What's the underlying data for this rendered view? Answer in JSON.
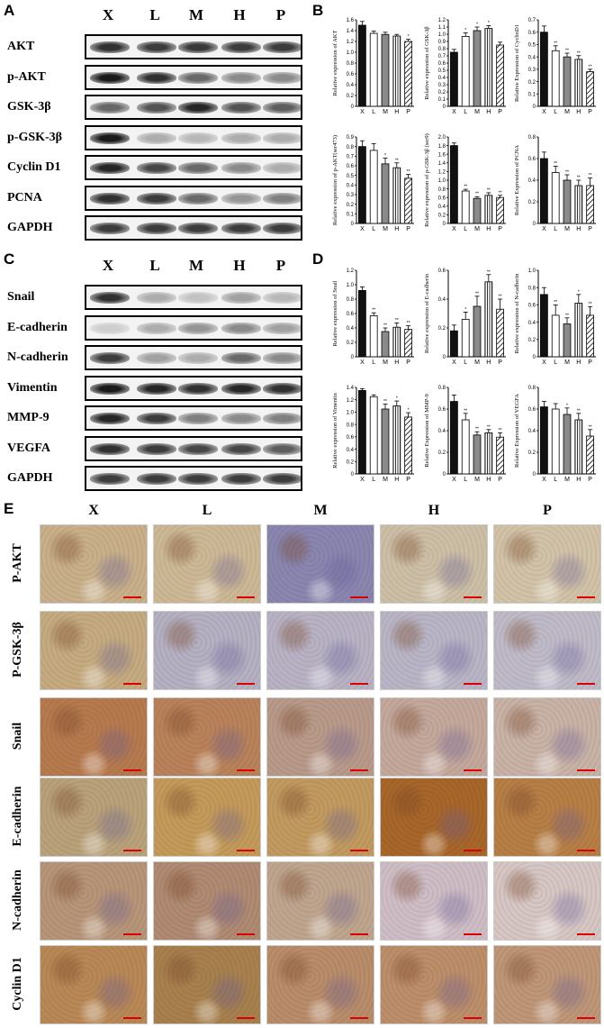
{
  "panels": {
    "A": "A",
    "B": "B",
    "C": "C",
    "D": "D",
    "E": "E"
  },
  "lanes": [
    "X",
    "L",
    "M",
    "H",
    "P"
  ],
  "blotA": {
    "rows": [
      {
        "label": "AKT",
        "intensity": [
          0.85,
          0.8,
          0.82,
          0.8,
          0.8
        ]
      },
      {
        "label": "p-AKT",
        "intensity": [
          0.95,
          0.85,
          0.6,
          0.45,
          0.45
        ]
      },
      {
        "label": "GSK-3β",
        "intensity": [
          0.6,
          0.7,
          0.9,
          0.7,
          0.65
        ]
      },
      {
        "label": "p-GSK-3β",
        "intensity": [
          0.95,
          0.3,
          0.25,
          0.3,
          0.3
        ]
      },
      {
        "label": "Cyclin D1",
        "intensity": [
          0.9,
          0.75,
          0.6,
          0.45,
          0.3
        ]
      },
      {
        "label": "PCNA",
        "intensity": [
          0.85,
          0.8,
          0.6,
          0.4,
          0.5
        ]
      },
      {
        "label": "GAPDH",
        "intensity": [
          0.8,
          0.8,
          0.8,
          0.8,
          0.8
        ]
      }
    ]
  },
  "blotC": {
    "rows": [
      {
        "label": "Snail",
        "intensity": [
          0.85,
          0.3,
          0.2,
          0.35,
          0.25
        ]
      },
      {
        "label": "E-cadherin",
        "intensity": [
          0.15,
          0.3,
          0.4,
          0.45,
          0.35
        ]
      },
      {
        "label": "N-cadherin",
        "intensity": [
          0.8,
          0.35,
          0.3,
          0.6,
          0.45
        ]
      },
      {
        "label": "Vimentin",
        "intensity": [
          0.95,
          0.9,
          0.85,
          0.9,
          0.85
        ]
      },
      {
        "label": "MMP-9",
        "intensity": [
          0.9,
          0.8,
          0.5,
          0.45,
          0.5
        ]
      },
      {
        "label": "VEGFA",
        "intensity": [
          0.85,
          0.8,
          0.75,
          0.75,
          0.65
        ]
      },
      {
        "label": "GAPDH",
        "intensity": [
          0.8,
          0.8,
          0.8,
          0.8,
          0.8
        ]
      }
    ]
  },
  "ihc": {
    "rows": [
      "P-AKT",
      "P-GSK-3β",
      "Snail",
      "E-cadherin",
      "N-cadherin",
      "Cyclin D1"
    ],
    "tones": [
      [
        "#c9b08a",
        "#cdb896",
        "#8a86b0",
        "#cdbfa6",
        "#d2c3a8"
      ],
      [
        "#c6ab80",
        "#b5b0c2",
        "#b8b2c4",
        "#b9b5c6",
        "#c0bac8"
      ],
      [
        "#b77a4e",
        "#b9825a",
        "#b99a8a",
        "#c4a89c",
        "#c9b2a6"
      ],
      [
        "#b9a17a",
        "#c49a5a",
        "#c29a60",
        "#a8662a",
        "#b77e46"
      ],
      [
        "#b79578",
        "#b08a72",
        "#bfa58e",
        "#cfbdc6",
        "#d6c6c4"
      ],
      [
        "#b98856",
        "#a8804e",
        "#b98c6a",
        "#bd8e6a",
        "#bf9678"
      ]
    ]
  },
  "chart_data": [
    {
      "type": "bar",
      "ylabel": "Relative expression of AKT",
      "categories": [
        "X",
        "L",
        "M",
        "H",
        "P"
      ],
      "values": [
        1.5,
        1.35,
        1.33,
        1.3,
        1.2
      ],
      "errors": [
        0.07,
        0.04,
        0.04,
        0.03,
        0.04
      ],
      "sig": [
        "",
        "",
        "",
        "",
        "*"
      ],
      "ylim": [
        0,
        1.6
      ],
      "yticks": [
        "0",
        "0.2",
        "0.4",
        "0.6",
        "0.8",
        "1.0",
        "1.2",
        "1.4",
        "1.6"
      ]
    },
    {
      "type": "bar",
      "ylabel": "Relative expression of GSK-3β",
      "categories": [
        "X",
        "L",
        "M",
        "H",
        "P"
      ],
      "values": [
        0.75,
        0.97,
        1.05,
        1.08,
        0.85
      ],
      "errors": [
        0.04,
        0.05,
        0.05,
        0.04,
        0.04
      ],
      "sig": [
        "",
        "*",
        "*",
        "*",
        ""
      ],
      "ylim": [
        0,
        1.2
      ],
      "yticks": [
        "0",
        "0.1",
        "0.2",
        "0.3",
        "0.4",
        "0.5",
        "0.6",
        "0.7",
        "0.8",
        "0.9",
        "1.0",
        "1.1",
        "1.2"
      ]
    },
    {
      "type": "bar",
      "ylabel": "Relative Expression of CyclinD1",
      "categories": [
        "X",
        "L",
        "M",
        "H",
        "P"
      ],
      "values": [
        0.6,
        0.45,
        0.4,
        0.38,
        0.28
      ],
      "errors": [
        0.05,
        0.04,
        0.03,
        0.03,
        0.02
      ],
      "sig": [
        "",
        "**",
        "**",
        "**",
        "**"
      ],
      "ylim": [
        0,
        0.7
      ],
      "yticks": [
        "0",
        "0.1",
        "0.2",
        "0.3",
        "0.4",
        "0.5",
        "0.6",
        "0.7"
      ]
    },
    {
      "type": "bar",
      "ylabel": "Relative expression of p-AKT(ser473)",
      "categories": [
        "X",
        "L",
        "M",
        "H",
        "P"
      ],
      "values": [
        0.8,
        0.76,
        0.62,
        0.58,
        0.47
      ],
      "errors": [
        0.06,
        0.07,
        0.06,
        0.05,
        0.04
      ],
      "sig": [
        "",
        "",
        "*",
        "**",
        "**"
      ],
      "ylim": [
        0,
        0.9
      ],
      "yticks": [
        "0",
        "0.1",
        "0.2",
        "0.3",
        "0.4",
        "0.5",
        "0.6",
        "0.7",
        "0.8",
        "0.9"
      ]
    },
    {
      "type": "bar",
      "ylabel": "Relative expression of p-GSK-3β (ser9)",
      "categories": [
        "X",
        "L",
        "M",
        "H",
        "P"
      ],
      "values": [
        1.8,
        0.75,
        0.58,
        0.65,
        0.6
      ],
      "errors": [
        0.06,
        0.04,
        0.04,
        0.06,
        0.05
      ],
      "sig": [
        "",
        "**",
        "**",
        "**",
        "**"
      ],
      "ylim": [
        0,
        2.0
      ],
      "yticks": [
        "0",
        "0.2",
        "0.4",
        "0.6",
        "0.8",
        "1.0",
        "1.2",
        "1.4",
        "1.6",
        "1.8",
        "2.0"
      ]
    },
    {
      "type": "bar",
      "ylabel": "Relative Expression of PCNA",
      "categories": [
        "X",
        "L",
        "M",
        "H",
        "P"
      ],
      "values": [
        0.6,
        0.47,
        0.4,
        0.35,
        0.35
      ],
      "errors": [
        0.06,
        0.06,
        0.05,
        0.05,
        0.07
      ],
      "sig": [
        "",
        "**",
        "**",
        "**",
        "**"
      ],
      "ylim": [
        0,
        0.8
      ],
      "yticks": [
        "0",
        "0.2",
        "0.4",
        "0.6",
        "0.8"
      ]
    },
    {
      "type": "bar",
      "ylabel": "Relative expression of Snail",
      "categories": [
        "X",
        "L",
        "M",
        "H",
        "P"
      ],
      "values": [
        0.92,
        0.57,
        0.35,
        0.41,
        0.38
      ],
      "errors": [
        0.05,
        0.04,
        0.05,
        0.06,
        0.05
      ],
      "sig": [
        "",
        "**",
        "**",
        "**",
        "**"
      ],
      "ylim": [
        0,
        1.2
      ],
      "yticks": [
        "0",
        "0.2",
        "0.4",
        "0.6",
        "0.8",
        "1.0",
        "1.2"
      ]
    },
    {
      "type": "bar",
      "ylabel": "Relative expression of E-cadherin",
      "categories": [
        "X",
        "L",
        "M",
        "H",
        "P"
      ],
      "values": [
        0.18,
        0.26,
        0.35,
        0.52,
        0.33
      ],
      "errors": [
        0.04,
        0.05,
        0.07,
        0.05,
        0.07
      ],
      "sig": [
        "",
        "*",
        "**",
        "**",
        "**"
      ],
      "ylim": [
        0,
        0.6
      ],
      "yticks": [
        "0",
        "0.2",
        "0.4",
        "0.6"
      ]
    },
    {
      "type": "bar",
      "ylabel": "Relative expression of N-cadherin",
      "categories": [
        "X",
        "L",
        "M",
        "H",
        "P"
      ],
      "values": [
        0.72,
        0.48,
        0.38,
        0.62,
        0.48
      ],
      "errors": [
        0.08,
        0.12,
        0.07,
        0.1,
        0.1
      ],
      "sig": [
        "",
        "**",
        "**",
        "*",
        "**"
      ],
      "ylim": [
        0,
        1.0
      ],
      "yticks": [
        "0",
        "0.2",
        "0.4",
        "0.6",
        "0.8",
        "1.0"
      ]
    },
    {
      "type": "bar",
      "ylabel": "Relative expression of Vimentin",
      "categories": [
        "X",
        "L",
        "M",
        "H",
        "P"
      ],
      "values": [
        1.35,
        1.25,
        1.05,
        1.1,
        0.92
      ],
      "errors": [
        0.03,
        0.03,
        0.08,
        0.08,
        0.07
      ],
      "sig": [
        "",
        "",
        "**",
        "*",
        "*"
      ],
      "ylim": [
        0,
        1.4
      ],
      "yticks": [
        "0",
        "0.2",
        "0.4",
        "0.6",
        "0.8",
        "1.0",
        "1.2",
        "1.4"
      ]
    },
    {
      "type": "bar",
      "ylabel": "Relative Expression of MMP-9",
      "categories": [
        "X",
        "L",
        "M",
        "H",
        "P"
      ],
      "values": [
        0.67,
        0.5,
        0.36,
        0.38,
        0.34
      ],
      "errors": [
        0.06,
        0.06,
        0.03,
        0.03,
        0.04
      ],
      "sig": [
        "",
        "**",
        "**",
        "**",
        "**"
      ],
      "ylim": [
        0,
        0.8
      ],
      "yticks": [
        "0",
        "0.2",
        "0.4",
        "0.6",
        "0.8"
      ]
    },
    {
      "type": "bar",
      "ylabel": "Relative Expression of VEGFA",
      "categories": [
        "X",
        "L",
        "M",
        "H",
        "P"
      ],
      "values": [
        0.62,
        0.6,
        0.55,
        0.5,
        0.35
      ],
      "errors": [
        0.05,
        0.05,
        0.06,
        0.06,
        0.06
      ],
      "sig": [
        "",
        "",
        "*",
        "**",
        "**"
      ],
      "ylim": [
        0,
        0.8
      ],
      "yticks": [
        "0",
        "0.2",
        "0.4",
        "0.6",
        "0.8"
      ]
    }
  ]
}
